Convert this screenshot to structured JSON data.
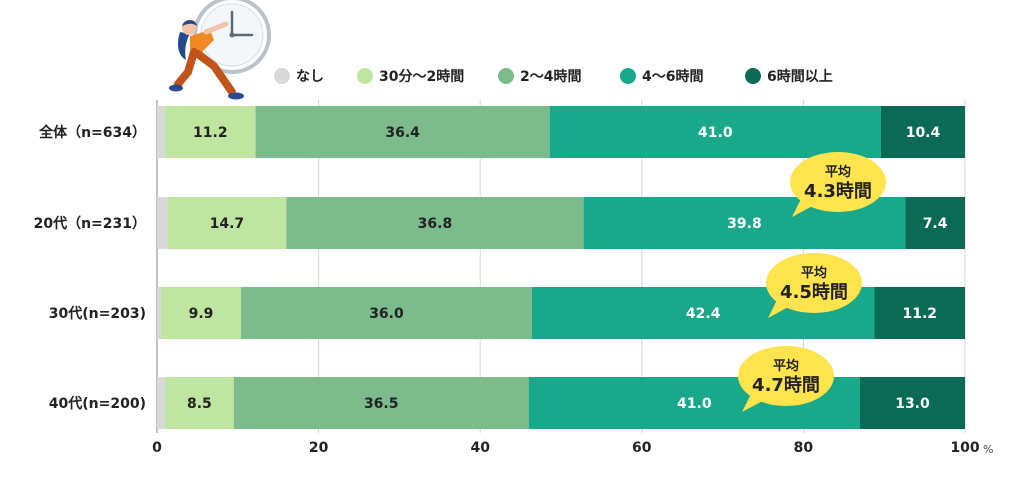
{
  "chart_data": {
    "type": "bar",
    "orientation": "horizontal",
    "stacked": true,
    "categories": [
      "全体（n=634）",
      "20代（n=231）",
      "30代(n=203)",
      "40代(n=200)"
    ],
    "series": [
      {
        "name": "なし",
        "color": "#d9d9d9",
        "values": [
          1.0,
          1.3,
          0.5,
          1.0
        ]
      },
      {
        "name": "30分〜2時間",
        "color": "#bfe6a0",
        "values": [
          11.2,
          14.7,
          9.9,
          8.5
        ]
      },
      {
        "name": "2〜4時間",
        "color": "#7cbb8c",
        "values": [
          36.4,
          36.8,
          36.0,
          36.5
        ]
      },
      {
        "name": "4〜6時間",
        "color": "#19a889",
        "values": [
          41.0,
          39.8,
          42.4,
          41.0
        ]
      },
      {
        "name": "6時間以上",
        "color": "#0a6a55",
        "values": [
          10.4,
          7.4,
          11.2,
          13.0
        ]
      }
    ],
    "data_labels": [
      [
        null,
        "11.2",
        "36.4",
        "41.0",
        "10.4"
      ],
      [
        null,
        "14.7",
        "36.8",
        "39.8",
        "7.4"
      ],
      [
        null,
        "9.9",
        "36.0",
        "42.4",
        "11.2"
      ],
      [
        null,
        "8.5",
        "36.5",
        "41.0",
        "13.0"
      ]
    ],
    "xlim": [
      0,
      100
    ],
    "xticks": [
      0,
      20,
      40,
      60,
      80,
      100
    ],
    "xunit": "%",
    "grid": true,
    "legend_position": "top",
    "callouts": [
      {
        "category_index": 1,
        "title": "平均",
        "value": "4.3時間"
      },
      {
        "category_index": 2,
        "title": "平均",
        "value": "4.5時間"
      },
      {
        "category_index": 3,
        "title": "平均",
        "value": "4.7時間"
      }
    ],
    "callout_color": "#ffe44d",
    "illustration": "person-pushing-clock-icon"
  }
}
